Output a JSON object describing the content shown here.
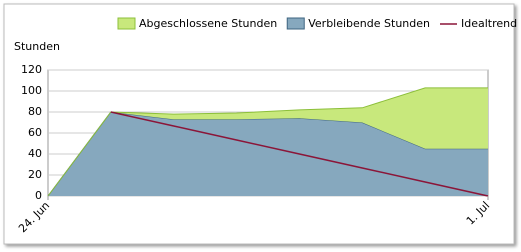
{
  "chart_data": {
    "type": "stacked-area",
    "y_label": "Stunden",
    "categories": [
      "24. Jun",
      null,
      null,
      null,
      null,
      null,
      null,
      "1. Jul"
    ],
    "series": [
      {
        "name": "Verbleibende Stunden",
        "color": "#86a8be",
        "values": [
          0,
          80,
          73,
          73,
          74,
          70,
          45,
          45
        ]
      },
      {
        "name": "Abgeschlossene Stunden",
        "color": "#c8e87c",
        "values": [
          0,
          0,
          5,
          6,
          8,
          14,
          58,
          58
        ]
      },
      {
        "name": "Idealtrend",
        "color": "#8b1538",
        "type": "line",
        "values": [
          null,
          80,
          66.7,
          53.3,
          40,
          26.7,
          13.3,
          0
        ]
      }
    ],
    "ylim": [
      0,
      120
    ],
    "yticks": [
      0,
      20,
      40,
      60,
      80,
      100,
      120
    ],
    "grid": true
  }
}
